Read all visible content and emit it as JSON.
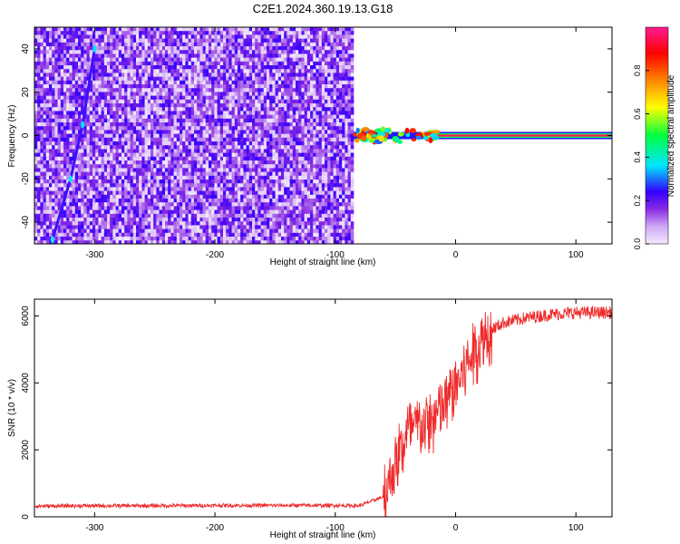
{
  "title": "C2E1.2024.360.19.13.G18",
  "chart_data": [
    {
      "type": "heatmap",
      "xlabel": "Height of straight line (km)",
      "ylabel": "Frequency (Hz)",
      "xlim": [
        -350,
        130
      ],
      "ylim": [
        -50,
        50
      ],
      "xticks": [
        "-300",
        "-200",
        "-100",
        "0",
        "100"
      ],
      "xtick_values": [
        -300,
        -200,
        -100,
        0,
        100
      ],
      "yticks": [
        "-40",
        "-20",
        "0",
        "20",
        "40"
      ],
      "ytick_values": [
        -40,
        -20,
        0,
        20,
        40
      ],
      "noise_region_x": [
        -350,
        -85
      ],
      "main_signal": {
        "frequency_hz": 0,
        "start_x": -85,
        "end_x": 130,
        "description": "strong narrow line at 0 Hz"
      },
      "diagonal_feature": {
        "points": [
          [
            -335,
            -48
          ],
          [
            -320,
            -20
          ],
          [
            -310,
            5
          ],
          [
            -300,
            40
          ]
        ]
      },
      "colorbar": {
        "label": "Normalized spectral amplitude",
        "ticks": [
          "0.0",
          "0.2",
          "0.4",
          "0.6",
          "0.8"
        ],
        "tick_values": [
          0.0,
          0.2,
          0.4,
          0.6,
          0.8
        ],
        "range": [
          0.0,
          1.0
        ],
        "colors": [
          "#f2eafc",
          "#8a2be2",
          "#3300ff",
          "#00e5ff",
          "#00ff40",
          "#ffff00",
          "#ff8000",
          "#ff0000",
          "#ff1a90"
        ]
      }
    },
    {
      "type": "line",
      "xlabel": "Height of straight line (km)",
      "ylabel": "SNR (10 * v/v)",
      "xlim": [
        -350,
        130
      ],
      "ylim": [
        0,
        6500
      ],
      "xticks": [
        "-300",
        "-200",
        "-100",
        "0",
        "100"
      ],
      "xtick_values": [
        -300,
        -200,
        -100,
        0,
        100
      ],
      "yticks": [
        "0",
        "2000",
        "4000",
        "6000"
      ],
      "ytick_values": [
        0,
        2000,
        4000,
        6000
      ],
      "color": "#ee2a2a",
      "x": [
        -350,
        -300,
        -250,
        -200,
        -150,
        -100,
        -80,
        -60,
        -50,
        -40,
        -30,
        -20,
        -10,
        0,
        10,
        20,
        30,
        40,
        60,
        80,
        100,
        130
      ],
      "y": [
        320,
        330,
        330,
        340,
        340,
        340,
        330,
        600,
        1600,
        2500,
        2700,
        2800,
        3300,
        3900,
        4600,
        5200,
        5600,
        5800,
        5950,
        6050,
        6100,
        6100
      ]
    }
  ]
}
